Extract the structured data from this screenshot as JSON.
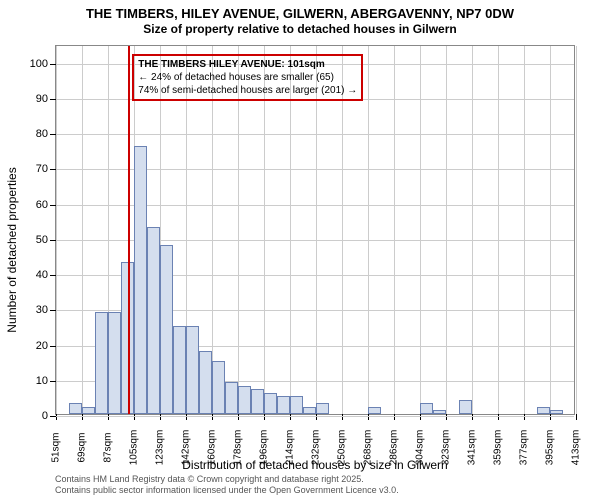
{
  "title": {
    "main": "THE TIMBERS, HILEY AVENUE, GILWERN, ABERGAVENNY, NP7 0DW",
    "sub": "Size of property relative to detached houses in Gilwern"
  },
  "chart": {
    "type": "histogram",
    "ylabel": "Number of detached properties",
    "xlabel": "Distribution of detached houses by size in Gilwern",
    "ylim": [
      0,
      105
    ],
    "ytick_step": 10,
    "xcategories": [
      "51sqm",
      "69sqm",
      "87sqm",
      "105sqm",
      "123sqm",
      "142sqm",
      "160sqm",
      "178sqm",
      "196sqm",
      "214sqm",
      "232sqm",
      "250sqm",
      "268sqm",
      "286sqm",
      "304sqm",
      "323sqm",
      "341sqm",
      "359sqm",
      "377sqm",
      "395sqm",
      "413sqm"
    ],
    "bars": [
      {
        "pos": 0.0,
        "value": 0
      },
      {
        "pos": 0.5,
        "value": 3
      },
      {
        "pos": 1.0,
        "value": 2
      },
      {
        "pos": 1.5,
        "value": 29
      },
      {
        "pos": 2.0,
        "value": 29
      },
      {
        "pos": 2.5,
        "value": 43
      },
      {
        "pos": 3.0,
        "value": 76
      },
      {
        "pos": 3.5,
        "value": 53
      },
      {
        "pos": 4.0,
        "value": 48
      },
      {
        "pos": 4.5,
        "value": 25
      },
      {
        "pos": 5.0,
        "value": 25
      },
      {
        "pos": 5.5,
        "value": 18
      },
      {
        "pos": 6.0,
        "value": 15
      },
      {
        "pos": 6.5,
        "value": 9
      },
      {
        "pos": 7.0,
        "value": 8
      },
      {
        "pos": 7.5,
        "value": 7
      },
      {
        "pos": 8.0,
        "value": 6
      },
      {
        "pos": 8.5,
        "value": 5
      },
      {
        "pos": 9.0,
        "value": 5
      },
      {
        "pos": 9.5,
        "value": 2
      },
      {
        "pos": 10.0,
        "value": 3
      },
      {
        "pos": 10.5,
        "value": 0
      },
      {
        "pos": 11.0,
        "value": 0
      },
      {
        "pos": 11.5,
        "value": 0
      },
      {
        "pos": 12.0,
        "value": 2
      },
      {
        "pos": 12.5,
        "value": 0
      },
      {
        "pos": 13.0,
        "value": 0
      },
      {
        "pos": 13.5,
        "value": 0
      },
      {
        "pos": 14.0,
        "value": 3
      },
      {
        "pos": 14.5,
        "value": 1
      },
      {
        "pos": 15.0,
        "value": 0
      },
      {
        "pos": 15.5,
        "value": 4
      },
      {
        "pos": 16.0,
        "value": 0
      },
      {
        "pos": 16.5,
        "value": 0
      },
      {
        "pos": 17.0,
        "value": 0
      },
      {
        "pos": 17.5,
        "value": 0
      },
      {
        "pos": 18.0,
        "value": 0
      },
      {
        "pos": 18.5,
        "value": 2
      },
      {
        "pos": 19.0,
        "value": 1
      },
      {
        "pos": 19.5,
        "value": 0
      },
      {
        "pos": 20.0,
        "value": 0
      }
    ],
    "bar_color": "#d4deee",
    "bar_border": "#6b82b3",
    "grid_color": "#cccccc",
    "background": "#ffffff",
    "highlight_color": "#cc0000",
    "highlight_x": 2.78,
    "annotation": {
      "title": "THE TIMBERS HILEY AVENUE: 101sqm",
      "line1": "← 24% of detached houses are smaller (65)",
      "line2": "74% of semi-detached houses are larger (201) →"
    }
  },
  "footer": {
    "line1": "Contains HM Land Registry data © Crown copyright and database right 2025.",
    "line2": "Contains public sector information licensed under the Open Government Licence v3.0."
  }
}
